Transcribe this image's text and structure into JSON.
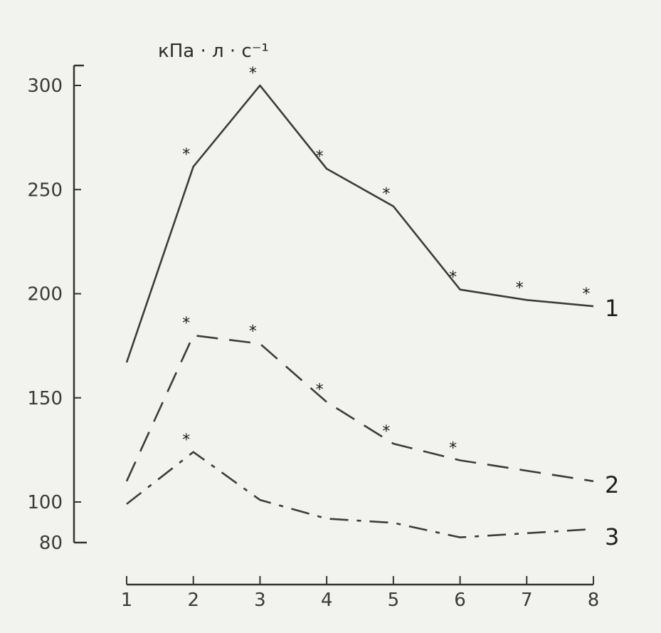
{
  "chart_data": {
    "type": "line",
    "ylabel": "кПа · л · с⁻¹",
    "xlabel": "",
    "x": [
      1,
      2,
      3,
      4,
      5,
      6,
      7,
      8
    ],
    "x_tick_labels": [
      "1",
      "2",
      "3",
      "4",
      "5",
      "6",
      "7",
      "8"
    ],
    "y_tick_values": [
      80,
      100,
      150,
      200,
      250,
      300
    ],
    "y_tick_labels": [
      "80",
      "100",
      "150",
      "200",
      "250",
      "300"
    ],
    "ylim": [
      80,
      310
    ],
    "xlim": [
      1,
      8
    ],
    "grid": false,
    "series": [
      {
        "name": "1",
        "line_style": "solid",
        "values": [
          167,
          261,
          300,
          260,
          242,
          202,
          197,
          194
        ],
        "significant_x": [
          2,
          3,
          4,
          5,
          6,
          7,
          8
        ]
      },
      {
        "name": "2",
        "line_style": "dashed",
        "values": [
          110,
          180,
          176,
          148,
          128,
          120,
          115,
          110
        ],
        "significant_x": [
          2,
          3,
          4,
          5,
          6
        ]
      },
      {
        "name": "3",
        "line_style": "dash-dot",
        "values": [
          99,
          124,
          101,
          92,
          90,
          83,
          85,
          87
        ],
        "significant_x": [
          2
        ]
      }
    ],
    "marker_symbol": "*"
  }
}
